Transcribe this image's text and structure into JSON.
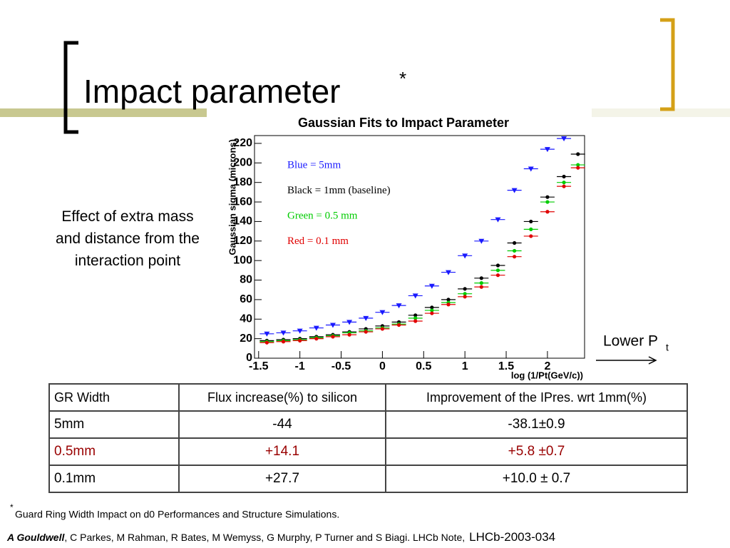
{
  "title": {
    "text": "Impact parameter",
    "mark": "*"
  },
  "side_text": "Effect of extra mass and distance from the interaction point",
  "lower_pt": {
    "main": "Lower P",
    "sub": "t"
  },
  "chart_data": {
    "type": "scatter",
    "title": "Gaussian Fits to Impact Parameter",
    "xlabel": "log (1/Pt(GeV/c))",
    "ylabel": "Gaussian sigma (microns)",
    "xlim": [
      -1.55,
      2.45
    ],
    "ylim": [
      0,
      228
    ],
    "xticks": [
      -1.5,
      -1,
      -0.5,
      0,
      0.5,
      1,
      1.5,
      2
    ],
    "yticks": [
      0,
      20,
      40,
      60,
      80,
      100,
      120,
      140,
      160,
      180,
      200,
      220
    ],
    "legend": "upper left",
    "series": [
      {
        "name": "Blue = 5mm",
        "color": "#1a1aff",
        "marker": "triangle-down",
        "x": [
          -1.4,
          -1.2,
          -1.0,
          -0.8,
          -0.6,
          -0.4,
          -0.2,
          0,
          0.2,
          0.4,
          0.6,
          0.8,
          1.0,
          1.2,
          1.4,
          1.6,
          1.8,
          2.0,
          2.2
        ],
        "values": [
          25,
          26,
          28,
          31,
          34,
          37,
          41,
          47,
          54,
          64,
          74,
          88,
          105,
          120,
          142,
          172,
          194,
          214,
          225
        ]
      },
      {
        "name": "Black = 1mm (baseline)",
        "color": "#000000",
        "marker": "circle",
        "x": [
          -1.4,
          -1.2,
          -1.0,
          -0.8,
          -0.6,
          -0.4,
          -0.2,
          0,
          0.2,
          0.4,
          0.6,
          0.8,
          1.0,
          1.2,
          1.4,
          1.6,
          1.8,
          2.0,
          2.2,
          2.37
        ],
        "values": [
          18,
          19,
          20,
          22,
          24,
          27,
          30,
          33,
          37,
          44,
          52,
          60,
          71,
          82,
          95,
          118,
          140,
          165,
          186,
          209
        ]
      },
      {
        "name": "Green = 0.5 mm",
        "color": "#00cc00",
        "marker": "circle",
        "x": [
          -1.4,
          -1.2,
          -1.0,
          -0.8,
          -0.6,
          -0.4,
          -0.2,
          0,
          0.2,
          0.4,
          0.6,
          0.8,
          1.0,
          1.2,
          1.4,
          1.6,
          1.8,
          2.0,
          2.2,
          2.37
        ],
        "values": [
          17,
          18,
          19,
          21,
          23,
          26,
          28,
          31,
          35,
          41,
          49,
          57,
          66,
          77,
          90,
          110,
          132,
          160,
          180,
          198
        ]
      },
      {
        "name": "Red = 0.1 mm",
        "color": "#e00000",
        "marker": "circle",
        "x": [
          -1.4,
          -1.2,
          -1.0,
          -0.8,
          -0.6,
          -0.4,
          -0.2,
          0,
          0.2,
          0.4,
          0.6,
          0.8,
          1.0,
          1.2,
          1.4,
          1.6,
          1.8,
          2.0,
          2.2,
          2.37
        ],
        "values": [
          16,
          17,
          18,
          20,
          22,
          24,
          27,
          30,
          34,
          38,
          46,
          55,
          63,
          73,
          85,
          104,
          125,
          150,
          176,
          195
        ]
      }
    ]
  },
  "table": {
    "header": [
      "GR Width",
      "Flux increase(%) to silicon",
      "Improvement of the IPres. wrt 1mm(%)"
    ],
    "rows": [
      [
        "5mm",
        "-44",
        "-38.1±0.9"
      ],
      [
        "0.5mm",
        "+14.1",
        "+5.8 ±0.7"
      ],
      [
        "0.1mm",
        "+27.7",
        "+10.0 ± 0.7"
      ]
    ]
  },
  "footnote": {
    "mark": "*",
    "text": "Guard Ring Width Impact on d0 Performances and Structure Simulations."
  },
  "citation": {
    "lead": "A Gouldwell",
    "rest": ", C Parkes, M Rahman, R Bates, M Wemyss, G Murphy, P Turner and S Biagi. LHCb Note,",
    "note": "LHCb-2003-034"
  }
}
